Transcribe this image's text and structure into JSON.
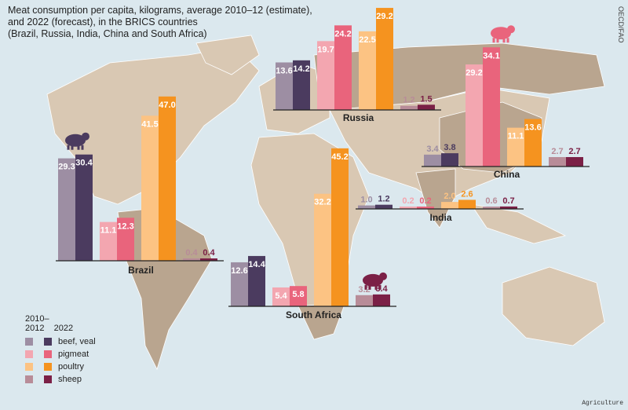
{
  "title": "Meat consumption per capita, kilograms, average 2010–12 (estimate),\nand 2022 (forecast), in the BRICS countries\n(Brazil, Russia, India, China and South Africa)",
  "credit": "OECD/FAO",
  "tag": "Agriculture",
  "colors": {
    "ocean": "#dbe8ee",
    "land": "#d9c8b3",
    "brics_land": "#b9a58f",
    "border": "#ffffff"
  },
  "legend": {
    "header_early": "2010–\n2012",
    "header_late": "2022",
    "items": [
      {
        "label": "beef, veal",
        "early_color": "#9d8ea3",
        "late_color": "#4b3b5f"
      },
      {
        "label": "pigmeat",
        "early_color": "#f3a6b0",
        "late_color": "#e9647c"
      },
      {
        "label": "poultry",
        "early_color": "#fcc383",
        "late_color": "#f5931f"
      },
      {
        "label": "sheep",
        "early_color": "#b88c98",
        "late_color": "#7b2046"
      }
    ]
  },
  "chart_data": {
    "type": "bar",
    "unit": "kilograms per capita",
    "periods": [
      "2010–2012",
      "2022"
    ],
    "categories": [
      "beef, veal",
      "pigmeat",
      "poultry",
      "sheep"
    ],
    "countries": [
      {
        "name": "Brazil",
        "values": [
          [
            29.3,
            30.4
          ],
          [
            11.1,
            12.3
          ],
          [
            41.5,
            47.0
          ],
          [
            0.4,
            0.4
          ]
        ],
        "icon": "cow-icon"
      },
      {
        "name": "Russia",
        "values": [
          [
            13.6,
            14.2
          ],
          [
            19.7,
            24.2
          ],
          [
            22.5,
            29.2
          ],
          [
            1.2,
            1.5
          ]
        ]
      },
      {
        "name": "China",
        "values": [
          [
            3.4,
            3.8
          ],
          [
            29.2,
            34.1
          ],
          [
            11.1,
            13.6
          ],
          [
            2.7,
            2.7
          ]
        ],
        "icon": "pig-icon"
      },
      {
        "name": "India",
        "values": [
          [
            1.0,
            1.2
          ],
          [
            0.2,
            0.2
          ],
          [
            2.0,
            2.6
          ],
          [
            0.6,
            0.7
          ]
        ]
      },
      {
        "name": "South Africa",
        "values": [
          [
            12.6,
            14.4
          ],
          [
            5.4,
            5.8
          ],
          [
            32.2,
            45.2
          ],
          [
            3.2,
            3.4
          ]
        ],
        "icon": "sheep-icon"
      }
    ]
  }
}
